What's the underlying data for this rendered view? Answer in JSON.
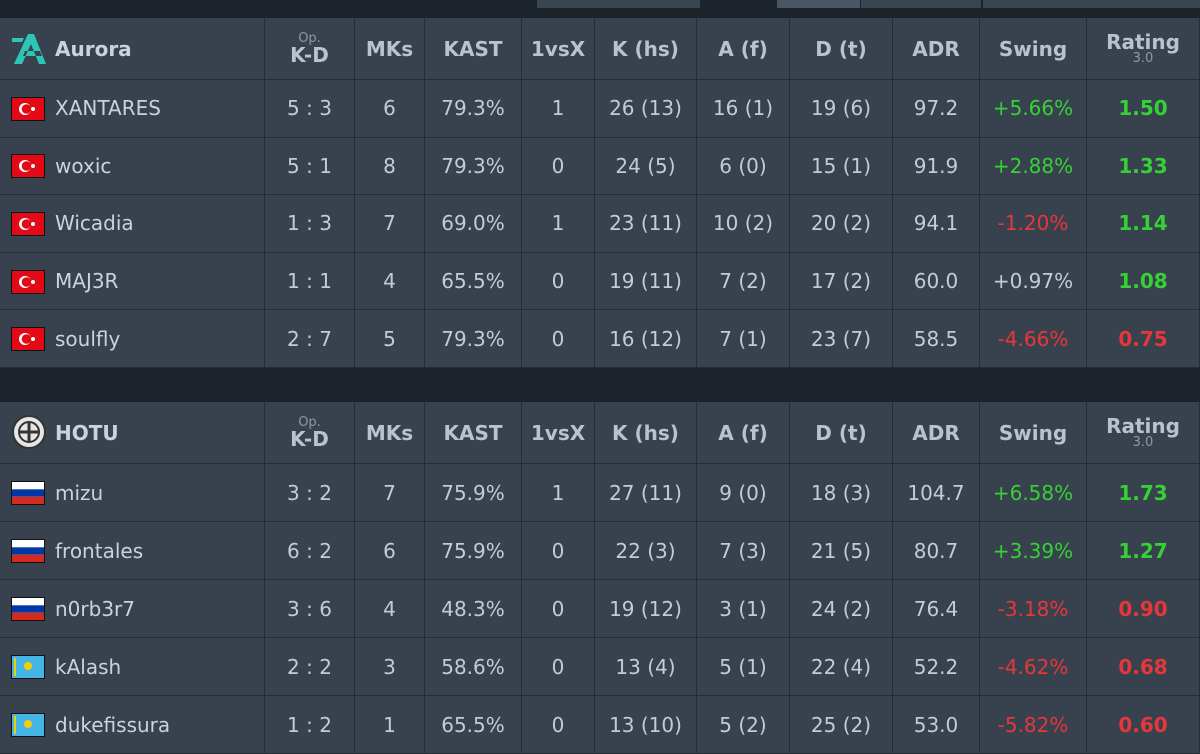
{
  "tables": [
    {
      "team": "Aurora",
      "columns": [
        "K-D",
        "MKs",
        "KAST",
        "1vsX",
        "K (hs)",
        "A (f)",
        "D (t)",
        "ADR",
        "Swing",
        "Rating"
      ],
      "kd_note": "Op.",
      "rating_note": "3.0",
      "rows": [
        {
          "cells": [
            "XANTARES",
            "5 : 3",
            "6",
            "79.3%",
            "1",
            "26 (13)",
            "16 (1)",
            "19 (6)",
            "97.2",
            "+5.66%",
            "1.50"
          ],
          "swing_color": "#35d135",
          "rating_color": "#35d135"
        },
        {
          "cells": [
            "woxic",
            "5 : 1",
            "8",
            "79.3%",
            "0",
            "24 (5)",
            "6 (0)",
            "15 (1)",
            "91.9",
            "+2.88%",
            "1.33"
          ],
          "swing_color": "#35d135",
          "rating_color": "#35d135"
        },
        {
          "cells": [
            "Wicadia",
            "1 : 3",
            "7",
            "69.0%",
            "1",
            "23 (11)",
            "10 (2)",
            "20 (2)",
            "94.1",
            "-1.20%",
            "1.14"
          ],
          "swing_color": "#e8363a",
          "rating_color": "#35d135"
        },
        {
          "cells": [
            "MAJ3R",
            "1 : 1",
            "4",
            "65.5%",
            "0",
            "19 (11)",
            "7 (2)",
            "17 (2)",
            "60.0",
            "+0.97%",
            "1.08"
          ],
          "swing_color": "#c3ccd6",
          "rating_color": "#35d135"
        },
        {
          "cells": [
            "soulfly",
            "2 : 7",
            "5",
            "79.3%",
            "0",
            "16 (12)",
            "7 (1)",
            "23 (7)",
            "58.5",
            "-4.66%",
            "0.75"
          ],
          "swing_color": "#e8363a",
          "rating_color": "#e8363a"
        }
      ]
    },
    {
      "team": "HOTU",
      "columns": [
        "K-D",
        "MKs",
        "KAST",
        "1vsX",
        "K (hs)",
        "A (f)",
        "D (t)",
        "ADR",
        "Swing",
        "Rating"
      ],
      "kd_note": "Op.",
      "rating_note": "3.0",
      "rows": [
        {
          "cells": [
            "mizu",
            "3 : 2",
            "7",
            "75.9%",
            "1",
            "27 (11)",
            "9 (0)",
            "18 (3)",
            "104.7",
            "+6.58%",
            "1.73"
          ],
          "swing_color": "#35d135",
          "rating_color": "#35d135"
        },
        {
          "cells": [
            "frontales",
            "6 : 2",
            "6",
            "75.9%",
            "0",
            "22 (3)",
            "7 (3)",
            "21 (5)",
            "80.7",
            "+3.39%",
            "1.27"
          ],
          "swing_color": "#35d135",
          "rating_color": "#35d135"
        },
        {
          "cells": [
            "n0rb3r7",
            "3 : 6",
            "4",
            "48.3%",
            "0",
            "19 (12)",
            "3 (1)",
            "24 (2)",
            "76.4",
            "-3.18%",
            "0.90"
          ],
          "swing_color": "#e8363a",
          "rating_color": "#e8363a"
        },
        {
          "cells": [
            "kAlash",
            "2 : 2",
            "3",
            "58.6%",
            "0",
            "13 (4)",
            "5 (1)",
            "22 (4)",
            "52.2",
            "-4.62%",
            "0.68"
          ],
          "swing_color": "#e8363a",
          "rating_color": "#e8363a"
        },
        {
          "cells": [
            "dukefissura",
            "1 : 2",
            "1",
            "65.5%",
            "0",
            "13 (10)",
            "5 (2)",
            "25 (2)",
            "53.0",
            "-5.82%",
            "0.60"
          ],
          "swing_color": "#e8363a",
          "rating_color": "#e8363a"
        }
      ]
    }
  ]
}
